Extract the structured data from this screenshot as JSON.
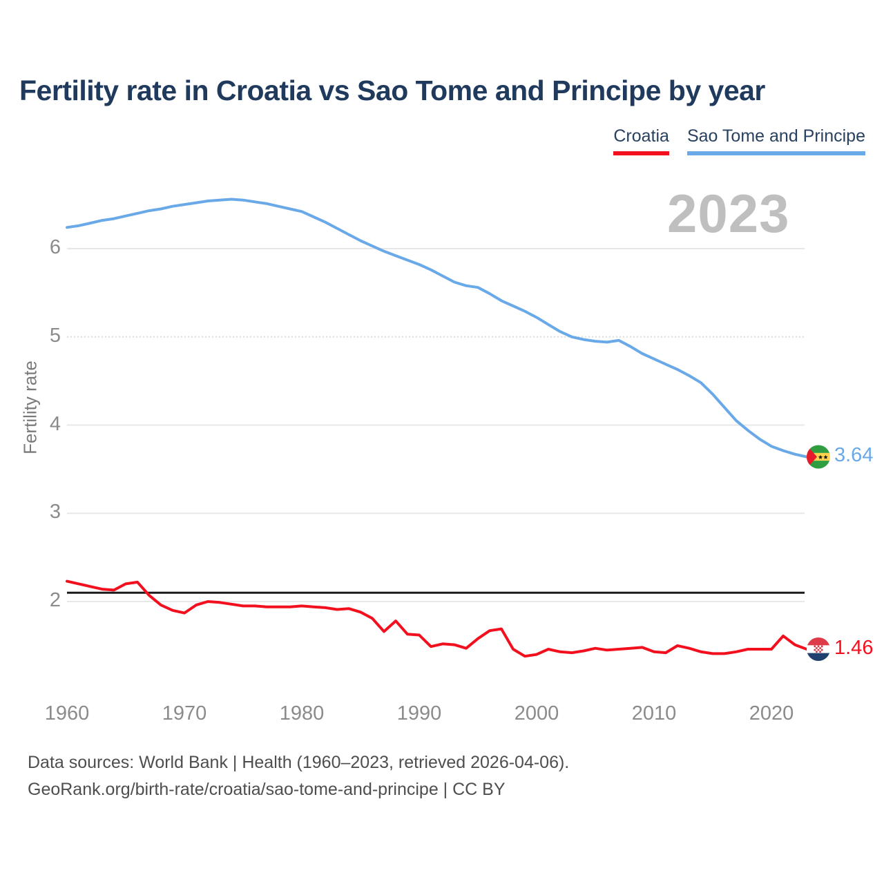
{
  "title": "Fertility rate in Croatia vs Sao Tome and Principe by year",
  "watermark": "2023",
  "legend": [
    {
      "label": "Croatia",
      "color": "#f3101e"
    },
    {
      "label": "Sao Tome and Principe",
      "color": "#6aa9e8"
    }
  ],
  "footer": {
    "line1": "Data sources: World Bank | Health (1960–2023, retrieved 2026-04-06).",
    "line2": "GeoRank.org/birth-rate/croatia/sao-tome-and-principe | CC BY"
  },
  "colors": {
    "title_text": "#1f3a5c",
    "axis_text": "#8b8b8b",
    "watermark": "#bfbfbf",
    "gridline": "#e7e7e7",
    "replacement_line": "#1a1a1a",
    "croatia_red": "#f3101e",
    "sao_tome_blue": "#6aa9e8"
  },
  "chart_data": {
    "type": "line",
    "title": "Fertility rate in Croatia vs Sao Tome and Principe by year",
    "xlabel": "",
    "ylabel": "Fertility rate",
    "grid": "horizontal",
    "legend_position": "top-right",
    "x_ticks": [
      1960,
      1970,
      1980,
      1990,
      2000,
      2010,
      2020
    ],
    "y_ticks": [
      2,
      3,
      4,
      5,
      6
    ],
    "ylim": [
      1.1,
      6.8
    ],
    "xlim": [
      1960,
      2023
    ],
    "replacement_level": 2.1,
    "x": [
      1960,
      1961,
      1962,
      1963,
      1964,
      1965,
      1966,
      1967,
      1968,
      1969,
      1970,
      1971,
      1972,
      1973,
      1974,
      1975,
      1976,
      1977,
      1978,
      1979,
      1980,
      1981,
      1982,
      1983,
      1984,
      1985,
      1986,
      1987,
      1988,
      1989,
      1990,
      1991,
      1992,
      1993,
      1994,
      1995,
      1996,
      1997,
      1998,
      1999,
      2000,
      2001,
      2002,
      2003,
      2004,
      2005,
      2006,
      2007,
      2008,
      2009,
      2010,
      2011,
      2012,
      2013,
      2014,
      2015,
      2016,
      2017,
      2018,
      2019,
      2020,
      2021,
      2022,
      2023
    ],
    "series": [
      {
        "name": "Sao Tome and Principe",
        "color": "#6aa9e8",
        "end_label": "3.64",
        "flag": "sao-tome-and-principe",
        "values": [
          6.24,
          6.26,
          6.29,
          6.32,
          6.34,
          6.37,
          6.4,
          6.43,
          6.45,
          6.48,
          6.5,
          6.52,
          6.54,
          6.55,
          6.56,
          6.55,
          6.53,
          6.51,
          6.48,
          6.45,
          6.42,
          6.36,
          6.3,
          6.23,
          6.16,
          6.09,
          6.03,
          5.97,
          5.92,
          5.87,
          5.82,
          5.76,
          5.69,
          5.62,
          5.58,
          5.56,
          5.49,
          5.41,
          5.35,
          5.29,
          5.22,
          5.14,
          5.06,
          5.0,
          4.97,
          4.95,
          4.94,
          4.96,
          4.89,
          4.81,
          4.75,
          4.69,
          4.63,
          4.56,
          4.48,
          4.35,
          4.2,
          4.05,
          3.94,
          3.84,
          3.76,
          3.71,
          3.67,
          3.64
        ]
      },
      {
        "name": "Croatia",
        "color": "#f3101e",
        "end_label": "1.46",
        "flag": "croatia",
        "values": [
          2.23,
          2.2,
          2.17,
          2.14,
          2.13,
          2.2,
          2.22,
          2.07,
          1.96,
          1.9,
          1.87,
          1.96,
          2.0,
          1.99,
          1.97,
          1.95,
          1.95,
          1.94,
          1.94,
          1.94,
          1.95,
          1.94,
          1.93,
          1.91,
          1.92,
          1.88,
          1.81,
          1.66,
          1.78,
          1.63,
          1.62,
          1.49,
          1.52,
          1.51,
          1.47,
          1.58,
          1.67,
          1.69,
          1.46,
          1.38,
          1.4,
          1.46,
          1.43,
          1.42,
          1.44,
          1.47,
          1.45,
          1.46,
          1.47,
          1.48,
          1.43,
          1.42,
          1.5,
          1.47,
          1.43,
          1.41,
          1.41,
          1.43,
          1.46,
          1.46,
          1.46,
          1.61,
          1.51,
          1.46
        ]
      }
    ]
  }
}
